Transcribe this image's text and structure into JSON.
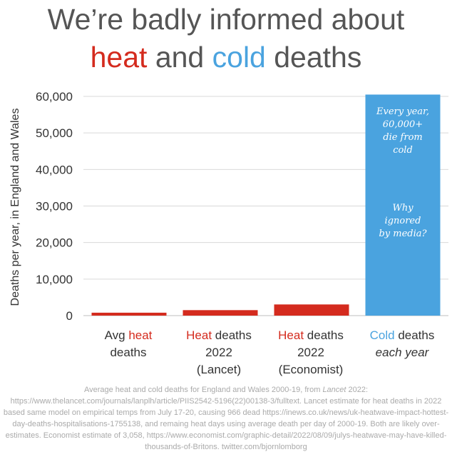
{
  "title": {
    "line1": "We’re badly informed about",
    "heat_word": "heat",
    "and_word": " and ",
    "cold_word": "cold",
    "deaths_word": " deaths"
  },
  "colors": {
    "heat": "#d42b1e",
    "cold": "#4aa3df",
    "text": "#555555",
    "grid": "#d9d9d9"
  },
  "chart_data": {
    "type": "bar",
    "ylabel": "Deaths per year, in England and Wales",
    "ylim": [
      0,
      60000
    ],
    "yticks": [
      0,
      10000,
      20000,
      30000,
      40000,
      50000,
      60000
    ],
    "ytick_labels": [
      "0",
      "10,000",
      "20,000",
      "30,000",
      "40,000",
      "50,000",
      "60,000"
    ],
    "grid": true,
    "categories": [
      "Avg heat deaths",
      "Heat deaths 2022 (Lancet)",
      "Heat deaths 2022 (Economist)",
      "Cold deaths each year"
    ],
    "values": [
      800,
      1500,
      3058,
      60500
    ],
    "bar_colors": [
      "#d42b1e",
      "#d42b1e",
      "#d42b1e",
      "#4aa3df"
    ]
  },
  "categories_display": [
    {
      "hl": "heat",
      "pre": "Avg ",
      "word": "heat",
      "post": "",
      "line2": "deaths",
      "line3": "",
      "italic2": false
    },
    {
      "hl": "heat",
      "pre": "",
      "word": "Heat",
      "post": " deaths",
      "line2": "2022",
      "line3": "(Lancet)",
      "italic2": false
    },
    {
      "hl": "heat",
      "pre": "",
      "word": "Heat",
      "post": " deaths",
      "line2": "2022",
      "line3": "(Economist)",
      "italic2": false
    },
    {
      "hl": "cold",
      "pre": "",
      "word": "Cold",
      "post": " deaths",
      "line2": "each year",
      "line3": "",
      "italic2": true
    }
  ],
  "annotation": {
    "line1": "Every year,",
    "line2": "60,000+",
    "line3": "die from",
    "line4": "cold",
    "line5": "Why",
    "line6": "ignored",
    "line7": "by media?"
  },
  "source_note": {
    "part1": "Average heat and cold deaths for England and Wales 2000-19, from ",
    "italic": "Lancet",
    "part2": " 2022: https://www.thelancet.com/journals/lanplh/article/PIIS2542-5196(22)00138-3/fulltext. Lancet estimate for heat deaths in 2022 based same model on empirical temps from July 17-20, causing 966 dead https://inews.co.uk/news/uk-heatwave-impact-hottest-day-deaths-hospitalisations-1755138, and remaing heat days using average death per day of 2000-19. Both are likely over-estimates. Economist estimate of 3,058, https://www.economist.com/graphic-detail/2022/08/09/julys-heatwave-may-have-killed-thousands-of-Britons. twitter.com/bjornlomborg"
  }
}
